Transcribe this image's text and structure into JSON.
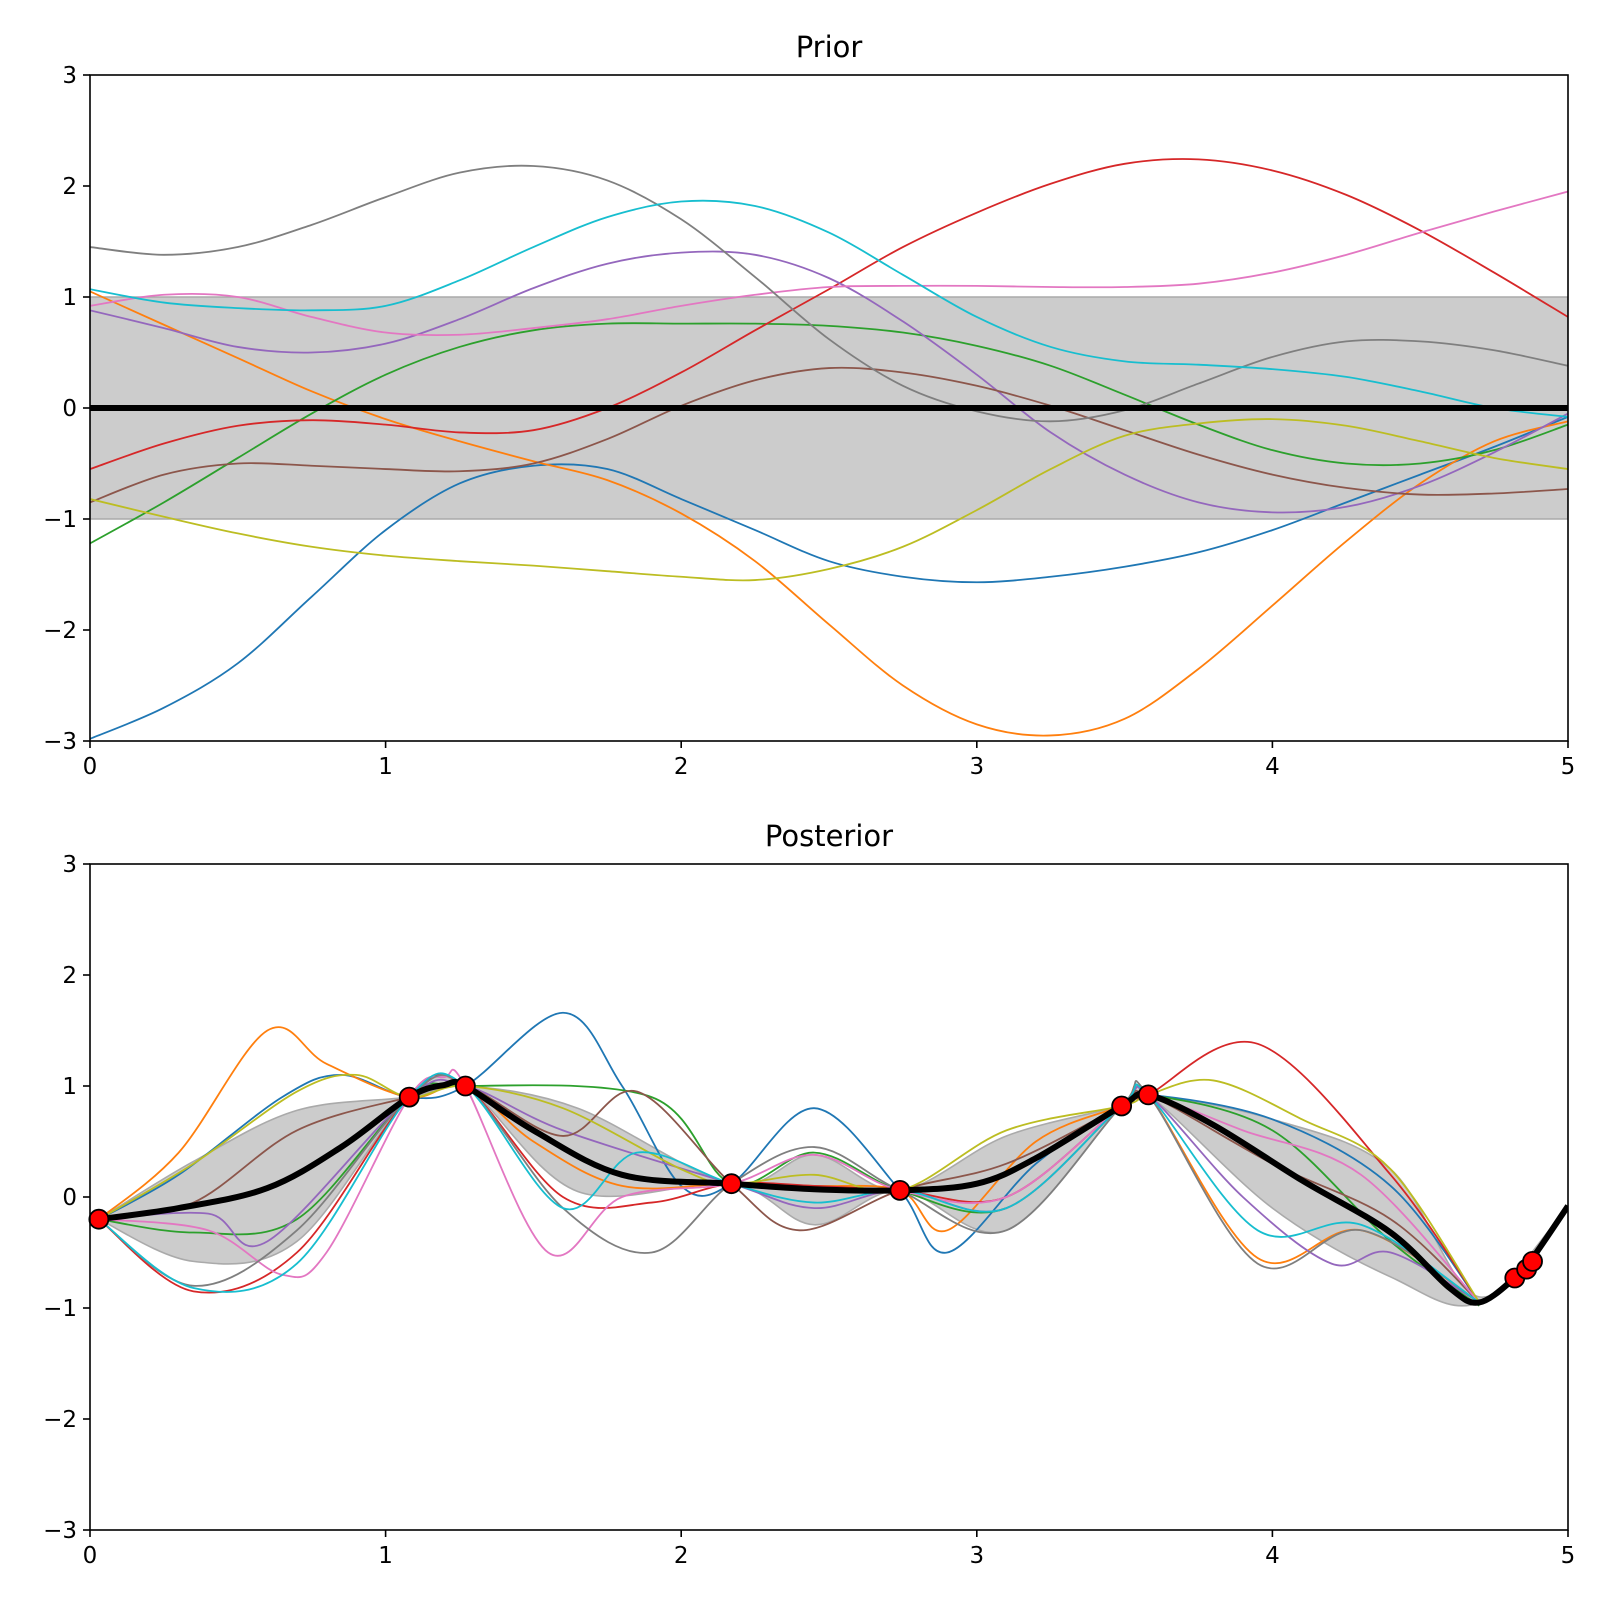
{
  "chart_data": [
    {
      "type": "line",
      "title": "Prior",
      "xlabel": "",
      "ylabel": "",
      "xlim": [
        0,
        5
      ],
      "ylim": [
        -3,
        3
      ],
      "xticks": [
        0,
        1,
        2,
        3,
        4,
        5
      ],
      "yticks": [
        -3,
        -2,
        -1,
        0,
        1,
        2,
        3
      ],
      "xtick_labels": [
        "0",
        "1",
        "2",
        "3",
        "4",
        "5"
      ],
      "ytick_labels": [
        "−3",
        "−2",
        "−1",
        "0",
        "1",
        "2",
        "3"
      ],
      "grid": false,
      "band": {
        "color": "#cccccc",
        "edge": "#aaaaaa",
        "x": [
          0,
          5
        ],
        "lower": [
          -1,
          -1
        ],
        "upper": [
          1,
          1
        ]
      },
      "mean": {
        "color": "#000000",
        "x": [
          0,
          5
        ],
        "y": [
          0,
          0
        ]
      },
      "samples": [
        {
          "color": "#1f77b4",
          "x": [
            0,
            0.25,
            0.5,
            0.75,
            1,
            1.25,
            1.5,
            1.75,
            2,
            2.25,
            2.5,
            2.75,
            3,
            3.25,
            3.5,
            3.75,
            4,
            4.25,
            4.5,
            4.75,
            5
          ],
          "y": [
            -2.98,
            -2.7,
            -2.3,
            -1.7,
            -1.1,
            -0.68,
            -0.52,
            -0.55,
            -0.82,
            -1.1,
            -1.38,
            -1.52,
            -1.57,
            -1.52,
            -1.43,
            -1.3,
            -1.1,
            -0.85,
            -0.6,
            -0.35,
            -0.08
          ]
        },
        {
          "color": "#ff7f0e",
          "x": [
            0,
            0.25,
            0.5,
            0.75,
            1,
            1.25,
            1.5,
            1.75,
            2,
            2.25,
            2.5,
            2.75,
            3,
            3.25,
            3.5,
            3.75,
            4,
            4.25,
            4.5,
            4.75,
            5
          ],
          "y": [
            1.05,
            0.75,
            0.45,
            0.15,
            -0.1,
            -0.3,
            -0.48,
            -0.65,
            -0.95,
            -1.38,
            -1.95,
            -2.5,
            -2.85,
            -2.95,
            -2.8,
            -2.35,
            -1.78,
            -1.2,
            -0.68,
            -0.3,
            -0.12
          ]
        },
        {
          "color": "#2ca02c",
          "x": [
            0,
            0.25,
            0.5,
            0.75,
            1,
            1.25,
            1.5,
            1.75,
            2,
            2.25,
            2.5,
            2.75,
            3,
            3.25,
            3.5,
            3.75,
            4,
            4.25,
            4.5,
            4.75,
            5
          ],
          "y": [
            -1.22,
            -0.85,
            -0.45,
            -0.05,
            0.3,
            0.55,
            0.7,
            0.76,
            0.76,
            0.76,
            0.74,
            0.68,
            0.56,
            0.38,
            0.12,
            -0.15,
            -0.38,
            -0.5,
            -0.5,
            -0.38,
            -0.15
          ]
        },
        {
          "color": "#d62728",
          "x": [
            0,
            0.25,
            0.5,
            0.75,
            1,
            1.25,
            1.5,
            1.75,
            2,
            2.25,
            2.5,
            2.75,
            3,
            3.25,
            3.5,
            3.75,
            4,
            4.25,
            4.5,
            4.75,
            5
          ],
          "y": [
            -0.55,
            -0.32,
            -0.16,
            -0.11,
            -0.15,
            -0.22,
            -0.2,
            0,
            0.32,
            0.7,
            1.07,
            1.45,
            1.76,
            2.02,
            2.2,
            2.24,
            2.14,
            1.92,
            1.6,
            1.22,
            0.82
          ]
        },
        {
          "color": "#9467bd",
          "x": [
            0,
            0.25,
            0.5,
            0.75,
            1,
            1.25,
            1.5,
            1.75,
            2,
            2.25,
            2.5,
            2.75,
            3,
            3.25,
            3.5,
            3.75,
            4,
            4.25,
            4.5,
            4.75,
            5
          ],
          "y": [
            0.88,
            0.72,
            0.55,
            0.5,
            0.58,
            0.8,
            1.08,
            1.3,
            1.4,
            1.38,
            1.17,
            0.78,
            0.3,
            -0.22,
            -0.6,
            -0.85,
            -0.94,
            -0.89,
            -0.7,
            -0.4,
            -0.05
          ]
        },
        {
          "color": "#8c564b",
          "x": [
            0,
            0.25,
            0.5,
            0.75,
            1,
            1.25,
            1.5,
            1.75,
            2,
            2.25,
            2.5,
            2.75,
            3,
            3.25,
            3.5,
            3.75,
            4,
            4.25,
            4.5,
            4.75,
            5
          ],
          "y": [
            -0.85,
            -0.6,
            -0.5,
            -0.52,
            -0.55,
            -0.57,
            -0.5,
            -0.28,
            0.02,
            0.25,
            0.36,
            0.32,
            0.2,
            0.02,
            -0.2,
            -0.42,
            -0.6,
            -0.72,
            -0.78,
            -0.77,
            -0.73
          ]
        },
        {
          "color": "#e377c2",
          "x": [
            0,
            0.25,
            0.5,
            0.75,
            1,
            1.25,
            1.5,
            1.75,
            2,
            2.25,
            2.5,
            2.75,
            3,
            3.25,
            3.5,
            3.75,
            4,
            4.25,
            4.5,
            4.75,
            5
          ],
          "y": [
            0.92,
            1.02,
            1.0,
            0.82,
            0.68,
            0.66,
            0.72,
            0.8,
            0.92,
            1.02,
            1.09,
            1.1,
            1.1,
            1.09,
            1.09,
            1.12,
            1.22,
            1.38,
            1.58,
            1.77,
            1.95
          ]
        },
        {
          "color": "#7f7f7f",
          "x": [
            0,
            0.25,
            0.5,
            0.75,
            1,
            1.25,
            1.5,
            1.75,
            2,
            2.25,
            2.5,
            2.75,
            3,
            3.25,
            3.5,
            3.75,
            4,
            4.25,
            4.5,
            4.75,
            5
          ],
          "y": [
            1.45,
            1.38,
            1.45,
            1.65,
            1.9,
            2.12,
            2.18,
            2.05,
            1.7,
            1.18,
            0.62,
            0.2,
            -0.03,
            -0.12,
            -0.02,
            0.22,
            0.46,
            0.6,
            0.6,
            0.52,
            0.38
          ]
        },
        {
          "color": "#bcbd22",
          "x": [
            0,
            0.25,
            0.5,
            0.75,
            1,
            1.25,
            1.5,
            1.75,
            2,
            2.25,
            2.5,
            2.75,
            3,
            3.25,
            3.5,
            3.75,
            4,
            4.25,
            4.5,
            4.75,
            5
          ],
          "y": [
            -0.82,
            -0.98,
            -1.13,
            -1.25,
            -1.33,
            -1.38,
            -1.42,
            -1.47,
            -1.52,
            -1.55,
            -1.45,
            -1.25,
            -0.92,
            -0.55,
            -0.25,
            -0.14,
            -0.1,
            -0.16,
            -0.3,
            -0.45,
            -0.55
          ]
        },
        {
          "color": "#17becf",
          "x": [
            0,
            0.25,
            0.5,
            0.75,
            1,
            1.25,
            1.5,
            1.75,
            2,
            2.25,
            2.5,
            2.75,
            3,
            3.25,
            3.5,
            3.75,
            4,
            4.25,
            4.5,
            4.75,
            5
          ],
          "y": [
            1.07,
            0.95,
            0.9,
            0.88,
            0.92,
            1.15,
            1.45,
            1.72,
            1.86,
            1.82,
            1.58,
            1.2,
            0.82,
            0.55,
            0.42,
            0.39,
            0.35,
            0.28,
            0.15,
            0.0,
            -0.08
          ]
        }
      ],
      "observations": []
    },
    {
      "type": "line",
      "title": "Posterior",
      "xlabel": "",
      "ylabel": "",
      "xlim": [
        0,
        5
      ],
      "ylim": [
        -3,
        3
      ],
      "xticks": [
        0,
        1,
        2,
        3,
        4,
        5
      ],
      "yticks": [
        -3,
        -2,
        -1,
        0,
        1,
        2,
        3
      ],
      "xtick_labels": [
        "0",
        "1",
        "2",
        "3",
        "4",
        "5"
      ],
      "ytick_labels": [
        "−3",
        "−2",
        "−1",
        "0",
        "1",
        "2",
        "3"
      ],
      "grid": false,
      "band": {
        "color": "#cccccc",
        "edge": "#aaaaaa",
        "x": [
          0.03,
          0.35,
          0.7,
          1.08,
          1.27,
          1.65,
          2.17,
          2.45,
          2.74,
          3.1,
          3.49,
          3.58,
          4.0,
          4.4,
          4.7,
          5.0
        ],
        "lower": [
          -0.2,
          -0.58,
          -0.4,
          0.9,
          1.0,
          0.05,
          0.12,
          -0.25,
          0.06,
          -0.3,
          0.82,
          0.92,
          -0.1,
          -0.72,
          -0.95,
          -0.08
        ],
        "upper": [
          -0.2,
          0.32,
          0.78,
          0.9,
          1.0,
          0.8,
          0.12,
          0.38,
          0.06,
          0.55,
          0.82,
          0.92,
          0.7,
          0.25,
          -0.9,
          -0.08
        ]
      },
      "mean": {
        "color": "#000000",
        "x": [
          0.03,
          0.3,
          0.6,
          0.85,
          1.08,
          1.2,
          1.27,
          1.5,
          1.8,
          2.17,
          2.45,
          2.74,
          3.0,
          3.2,
          3.49,
          3.58,
          3.8,
          4.1,
          4.4,
          4.6,
          4.7,
          4.82,
          4.88,
          5.0
        ],
        "y": [
          -0.2,
          -0.1,
          0.08,
          0.45,
          0.9,
          1.01,
          1.0,
          0.6,
          0.2,
          0.12,
          0.07,
          0.06,
          0.12,
          0.35,
          0.82,
          0.92,
          0.65,
          0.15,
          -0.32,
          -0.82,
          -0.95,
          -0.73,
          -0.55,
          -0.08
        ]
      },
      "samples": [
        {
          "color": "#1f77b4",
          "x": [
            0.03,
            0.3,
            0.65,
            0.85,
            1.08,
            1.27,
            1.6,
            1.8,
            2.0,
            2.17,
            2.45,
            2.74,
            2.9,
            3.2,
            3.49,
            3.58,
            4.0,
            4.4,
            4.7
          ],
          "y": [
            -0.2,
            0.2,
            0.9,
            1.1,
            0.9,
            1.0,
            1.66,
            1.0,
            0.1,
            0.12,
            0.8,
            0.06,
            -0.5,
            0.3,
            0.82,
            0.92,
            0.7,
            0.1,
            -0.95
          ]
        },
        {
          "color": "#ff7f0e",
          "x": [
            0.03,
            0.3,
            0.6,
            0.8,
            1.08,
            1.27,
            1.5,
            1.8,
            2.17,
            2.45,
            2.74,
            2.9,
            3.2,
            3.49,
            3.58,
            3.95,
            4.3,
            4.7
          ],
          "y": [
            -0.2,
            0.4,
            1.5,
            1.2,
            0.9,
            1.0,
            0.5,
            0.1,
            0.12,
            0.1,
            0.06,
            -0.3,
            0.5,
            0.82,
            0.92,
            -0.55,
            -0.3,
            -0.95
          ]
        },
        {
          "color": "#2ca02c",
          "x": [
            0.03,
            0.35,
            0.7,
            1.08,
            1.27,
            1.9,
            2.17,
            2.45,
            2.74,
            3.1,
            3.49,
            3.58,
            4.0,
            4.4,
            4.7
          ],
          "y": [
            -0.2,
            -0.32,
            -0.2,
            0.9,
            1.0,
            0.9,
            0.12,
            0.4,
            0.06,
            -0.1,
            0.82,
            0.92,
            0.6,
            -0.4,
            -0.98
          ]
        },
        {
          "color": "#d62728",
          "x": [
            0.03,
            0.35,
            0.7,
            1.08,
            1.27,
            1.6,
            1.9,
            2.17,
            2.45,
            2.74,
            3.1,
            3.49,
            3.58,
            3.95,
            4.4,
            4.7
          ],
          "y": [
            -0.2,
            -0.85,
            -0.5,
            0.9,
            1.0,
            0.0,
            -0.05,
            0.12,
            0.1,
            0.06,
            0.0,
            0.82,
            0.92,
            1.38,
            0.2,
            -0.95
          ]
        },
        {
          "color": "#9467bd",
          "x": [
            0.03,
            0.4,
            0.6,
            1.08,
            1.27,
            1.6,
            2.17,
            2.45,
            2.74,
            3.1,
            3.49,
            3.58,
            3.9,
            4.2,
            4.4,
            4.7
          ],
          "y": [
            -0.2,
            -0.15,
            -0.4,
            0.9,
            1.0,
            0.6,
            0.12,
            -0.1,
            0.06,
            -0.1,
            0.82,
            0.92,
            0.0,
            -0.6,
            -0.5,
            -0.95
          ]
        },
        {
          "color": "#8c564b",
          "x": [
            0.03,
            0.35,
            0.7,
            1.08,
            1.27,
            1.6,
            1.85,
            2.17,
            2.4,
            2.74,
            3.1,
            3.49,
            3.58,
            4.0,
            4.4,
            4.7
          ],
          "y": [
            -0.2,
            -0.05,
            0.6,
            0.9,
            1.0,
            0.55,
            0.95,
            0.12,
            -0.3,
            0.06,
            0.3,
            0.82,
            0.92,
            0.3,
            -0.2,
            -0.95
          ]
        },
        {
          "color": "#e377c2",
          "x": [
            0.03,
            0.4,
            0.65,
            0.8,
            1.08,
            1.2,
            1.27,
            1.55,
            1.8,
            2.17,
            2.45,
            2.74,
            3.1,
            3.49,
            3.58,
            3.9,
            4.3,
            4.7
          ],
          "y": [
            -0.2,
            -0.3,
            -0.7,
            -0.5,
            0.9,
            1.08,
            1.0,
            -0.5,
            0.0,
            0.12,
            0.38,
            0.06,
            0.0,
            0.82,
            0.92,
            0.6,
            0.2,
            -0.95
          ]
        },
        {
          "color": "#7f7f7f",
          "x": [
            0.03,
            0.35,
            0.7,
            1.08,
            1.27,
            1.6,
            1.9,
            2.17,
            2.45,
            2.74,
            3.1,
            3.49,
            3.58,
            3.95,
            4.3,
            4.7
          ],
          "y": [
            -0.2,
            -0.8,
            -0.3,
            0.9,
            1.0,
            -0.1,
            -0.5,
            0.12,
            0.45,
            0.06,
            -0.3,
            0.82,
            0.92,
            -0.6,
            -0.3,
            -0.95
          ]
        },
        {
          "color": "#bcbd22",
          "x": [
            0.03,
            0.35,
            0.7,
            0.9,
            1.08,
            1.27,
            1.6,
            2.0,
            2.17,
            2.45,
            2.74,
            3.1,
            3.49,
            3.58,
            3.8,
            4.1,
            4.4,
            4.7
          ],
          "y": [
            -0.2,
            0.3,
            0.95,
            1.1,
            0.9,
            1.0,
            0.8,
            0.25,
            0.12,
            0.2,
            0.06,
            0.6,
            0.82,
            0.92,
            1.05,
            0.7,
            0.25,
            -0.95
          ]
        },
        {
          "color": "#17becf",
          "x": [
            0.03,
            0.35,
            0.7,
            1.08,
            1.27,
            1.6,
            1.85,
            2.17,
            2.45,
            2.74,
            3.1,
            3.49,
            3.58,
            3.95,
            4.3,
            4.7
          ],
          "y": [
            -0.2,
            -0.82,
            -0.6,
            0.9,
            1.0,
            -0.1,
            0.4,
            0.12,
            -0.05,
            0.06,
            -0.1,
            0.82,
            0.92,
            -0.3,
            -0.25,
            -0.95
          ]
        }
      ],
      "observations": [
        {
          "x": 0.03,
          "y": -0.2
        },
        {
          "x": 1.08,
          "y": 0.9
        },
        {
          "x": 1.27,
          "y": 1.0
        },
        {
          "x": 2.17,
          "y": 0.12
        },
        {
          "x": 2.74,
          "y": 0.06
        },
        {
          "x": 3.49,
          "y": 0.82
        },
        {
          "x": 3.58,
          "y": 0.92
        },
        {
          "x": 4.82,
          "y": -0.73
        },
        {
          "x": 4.86,
          "y": -0.65
        },
        {
          "x": 4.88,
          "y": -0.58
        }
      ],
      "observation_color": "#ff0000"
    }
  ]
}
